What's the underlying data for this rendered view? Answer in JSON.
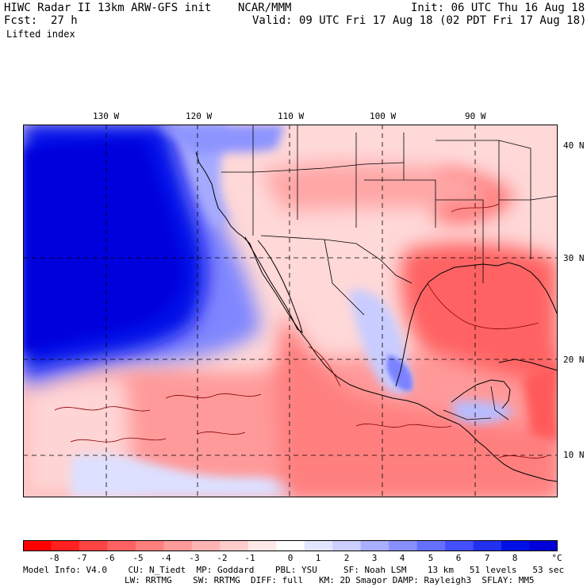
{
  "header": {
    "title": "HIWC Radar II 13km ARW-GFS init    NCAR/MMM",
    "init": "Init: 06 UTC Thu 16 Aug 18",
    "fcst_label": "Fcst:",
    "fcst_value": "27 h",
    "valid": "Valid: 09 UTC Fri 17 Aug 18 (02 PDT Fri 17 Aug 18)",
    "field": "Lifted index"
  },
  "map": {
    "lon_labels": [
      "130 W",
      "120 W",
      "110 W",
      "100 W",
      "90 W"
    ],
    "lat_labels": [
      "40 N",
      "30 N",
      "20 N",
      "10 N"
    ]
  },
  "colorbar": {
    "ticks": [
      "-8",
      "-7",
      "-6",
      "-5",
      "-4",
      "-3",
      "-2",
      "-1",
      "0",
      "1",
      "2",
      "3",
      "4",
      "5",
      "6",
      "7",
      "8"
    ],
    "unit": "°C",
    "colors": [
      "#ff0000",
      "#ff2020",
      "#ff4444",
      "#ff6262",
      "#ff7f7f",
      "#ff9a9a",
      "#ffb4b4",
      "#ffcccc",
      "#ffe8e8",
      "#ffffff",
      "#e4e6ff",
      "#cdd0ff",
      "#a9aeff",
      "#8890ff",
      "#6670ff",
      "#4450ff",
      "#2230f0",
      "#0010e6",
      "#0000d8"
    ]
  },
  "footer": {
    "line1": "Model Info: V4.0    CU: N_Tiedt  MP: Goddard    PBL: YSU     SF: Noah LSM    13 km   51 levels   53 sec",
    "line2": "LW: RRTMG    SW: RRTMG  DIFF: full   KM: 2D Smagor DAMP: Rayleigh3  SFLAY: MM5"
  }
}
